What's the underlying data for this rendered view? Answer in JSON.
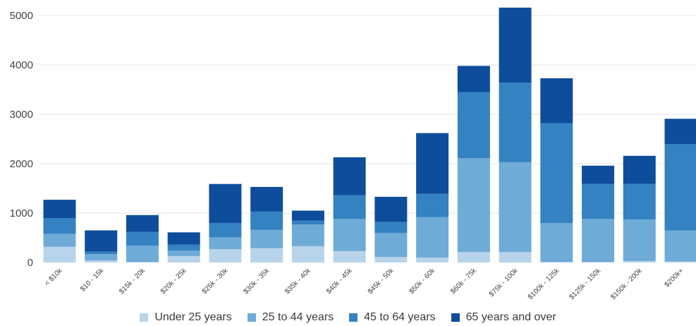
{
  "chart_data": {
    "type": "bar",
    "stacked": true,
    "title": "",
    "xlabel": "",
    "ylabel": "",
    "ylim": [
      0,
      5000
    ],
    "yticks": [
      0,
      1000,
      2000,
      3000,
      4000,
      5000
    ],
    "grid": true,
    "legend_position": "bottom",
    "categories": [
      "< $10k",
      "$10 - 15k",
      "$15k - 20k",
      "$20k - 25k",
      "$25k - 30k",
      "$30k - 35k",
      "$35k - 40k",
      "$40k - 45k",
      "$45k - 50k",
      "$50k - 60k",
      "$60k - 75k",
      "$75k - 100k",
      "$100k - 125k",
      "$125k - 150k",
      "$150k - 200k",
      "$200k+"
    ],
    "series": [
      {
        "name": "Under 25 years",
        "color": "#b8d4ea",
        "values": [
          320,
          40,
          10,
          130,
          270,
          290,
          330,
          230,
          110,
          100,
          210,
          210,
          10,
          10,
          30,
          20
        ]
      },
      {
        "name": "25 to 44 years",
        "color": "#6fabd7",
        "values": [
          260,
          130,
          330,
          110,
          240,
          370,
          440,
          650,
          490,
          820,
          1900,
          1820,
          790,
          870,
          840,
          630
        ]
      },
      {
        "name": "45 to 64 years",
        "color": "#3482c2",
        "values": [
          320,
          50,
          280,
          120,
          290,
          370,
          80,
          480,
          220,
          470,
          1340,
          1610,
          2020,
          710,
          720,
          1750
        ]
      },
      {
        "name": "65 years and over",
        "color": "#0e4d9b",
        "values": [
          370,
          430,
          340,
          250,
          790,
          500,
          200,
          770,
          510,
          1230,
          530,
          1520,
          910,
          370,
          570,
          510
        ]
      }
    ]
  }
}
